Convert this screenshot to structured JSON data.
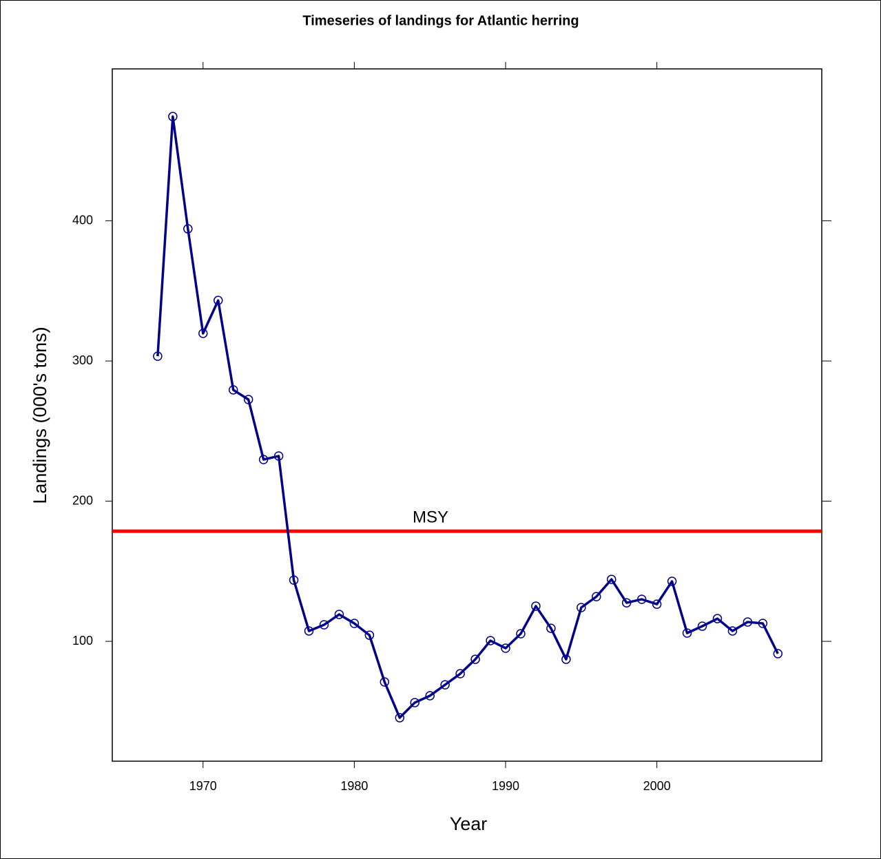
{
  "chart_data": {
    "type": "line",
    "title": "Timeseries of landings for Atlantic herring",
    "x_label": "Year",
    "y_label": "Landings (000's tons)",
    "x": [
      1967,
      1968,
      1969,
      1970,
      1971,
      1972,
      1973,
      1974,
      1975,
      1976,
      1977,
      1978,
      1979,
      1980,
      1981,
      1982,
      1983,
      1984,
      1985,
      1986,
      1987,
      1988,
      1989,
      1990,
      1991,
      1992,
      1993,
      1994,
      1995,
      1996,
      1997,
      1998,
      1999,
      2000,
      2001,
      2002,
      2003,
      2004,
      2005,
      2006,
      2007,
      2008
    ],
    "series": [
      {
        "name": "Landings",
        "color": "#00008b",
        "values": [
          303.4,
          474.4,
          394.3,
          319.7,
          343.2,
          279.4,
          272.5,
          229.7,
          232.2,
          143.7,
          107.4,
          111.8,
          119.2,
          112.8,
          104.4,
          71.0,
          45.5,
          56.3,
          61.2,
          69.0,
          76.9,
          87.2,
          100.5,
          95.1,
          105.4,
          125.1,
          109.3,
          87.2,
          124.1,
          131.9,
          144.2,
          127.5,
          130.0,
          126.5,
          142.8,
          105.9,
          110.8,
          116.2,
          107.4,
          113.8,
          112.8,
          91.2
        ]
      }
    ],
    "reference_line": {
      "label": "MSY",
      "value": 178.6,
      "color": "#ff0000"
    },
    "xlim": [
      1964,
      2010.9
    ],
    "ylim": [
      14.5,
      508.4
    ],
    "xticks": [
      1970,
      1980,
      1990,
      2000
    ],
    "yticks": [
      100,
      200,
      300,
      400
    ]
  }
}
